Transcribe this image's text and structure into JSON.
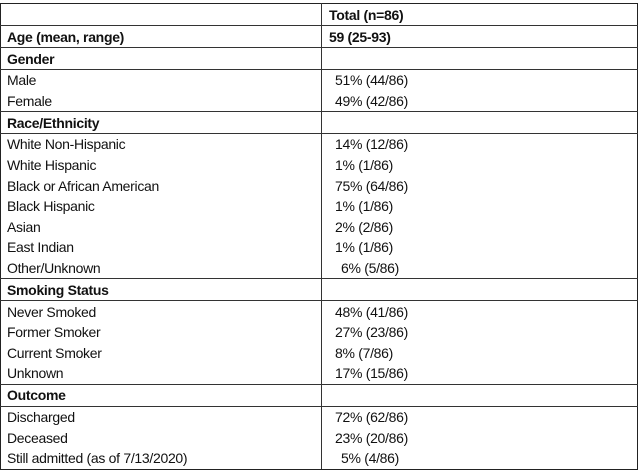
{
  "header": {
    "label": "",
    "total": "Total (n=86)"
  },
  "age": {
    "label": "Age (mean, range)",
    "value": "59 (25-93)"
  },
  "sections": [
    {
      "title": "Gender",
      "items": [
        {
          "label": "Male",
          "value": "51% (44/86)"
        },
        {
          "label": "Female",
          "value": "49% (42/86)"
        }
      ]
    },
    {
      "title": "Race/Ethnicity",
      "items": [
        {
          "label": "White Non-Hispanic",
          "value": "14% (12/86)"
        },
        {
          "label": "White Hispanic",
          "value": "1% (1/86)"
        },
        {
          "label": "Black or African American",
          "value": "75% (64/86)"
        },
        {
          "label": "Black Hispanic",
          "value": "1% (1/86)"
        },
        {
          "label": "Asian",
          "value": "2% (2/86)"
        },
        {
          "label": "East Indian",
          "value": "1% (1/86)"
        },
        {
          "label": "Other/Unknown",
          "value": "6% (5/86)"
        }
      ]
    },
    {
      "title": "Smoking Status",
      "items": [
        {
          "label": "Never Smoked",
          "value": "48% (41/86)"
        },
        {
          "label": "Former Smoker",
          "value": "27% (23/86)"
        },
        {
          "label": "Current Smoker",
          "value": "8% (7/86)"
        },
        {
          "label": "Unknown",
          "value": "17% (15/86)"
        }
      ]
    },
    {
      "title": "Outcome",
      "items": [
        {
          "label": "Discharged",
          "value": "72% (62/86)"
        },
        {
          "label": "Deceased",
          "value": "23% (20/86)"
        },
        {
          "label": "Still admitted (as of 7/13/2020)",
          "value": "5% (4/86)"
        }
      ]
    }
  ]
}
